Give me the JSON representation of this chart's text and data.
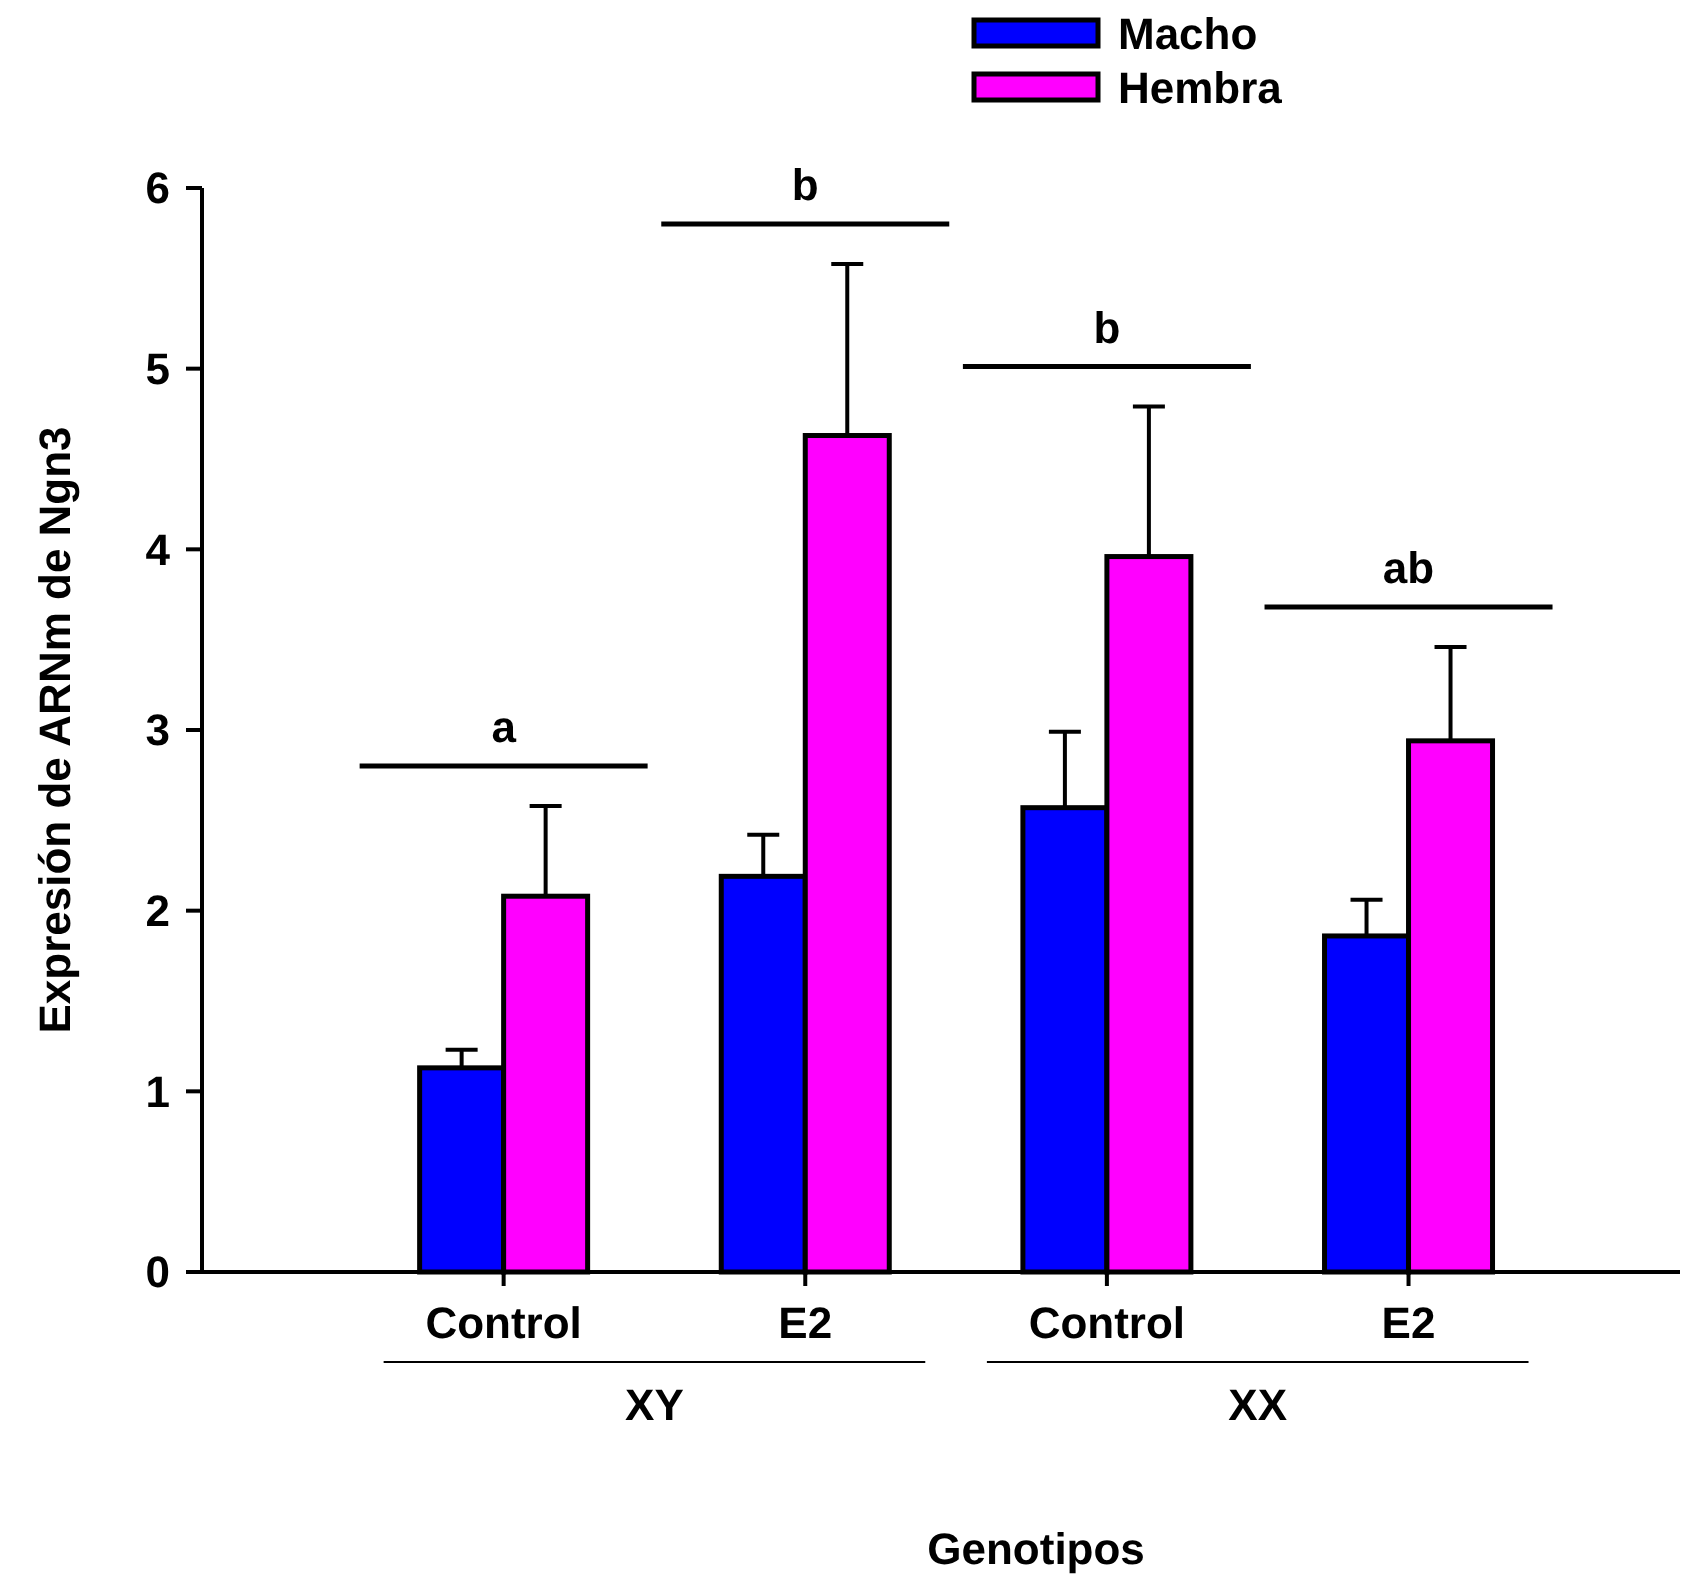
{
  "chart_data": {
    "type": "bar",
    "xlabel": "Genotipos",
    "ylabel": "Expresión de ARNm de Ngn3",
    "categories": [
      "Control",
      "E2",
      "Control",
      "E2"
    ],
    "series": [
      {
        "name": "Macho",
        "color": "#0000ff",
        "values": [
          1.13,
          2.19,
          2.57,
          1.86
        ],
        "errors": [
          [
            1.13,
            1.23
          ],
          [
            2.19,
            2.42
          ],
          [
            2.57,
            2.99
          ],
          [
            1.86,
            2.06
          ]
        ]
      },
      {
        "name": "Hembra",
        "color": "#ff00ff",
        "values": [
          2.08,
          4.63,
          3.96,
          2.94
        ],
        "errors": [
          [
            2.08,
            2.58
          ],
          [
            4.63,
            5.58
          ],
          [
            3.96,
            4.79
          ],
          [
            2.94,
            3.46
          ]
        ]
      }
    ],
    "ylim": [
      0,
      6
    ],
    "yticks": [
      0,
      1,
      2,
      3,
      4,
      5,
      6
    ],
    "grid": false,
    "legend": "top right",
    "annotations": [
      "a",
      "b",
      "b",
      "ab",
      "XY",
      "XX"
    ]
  }
}
